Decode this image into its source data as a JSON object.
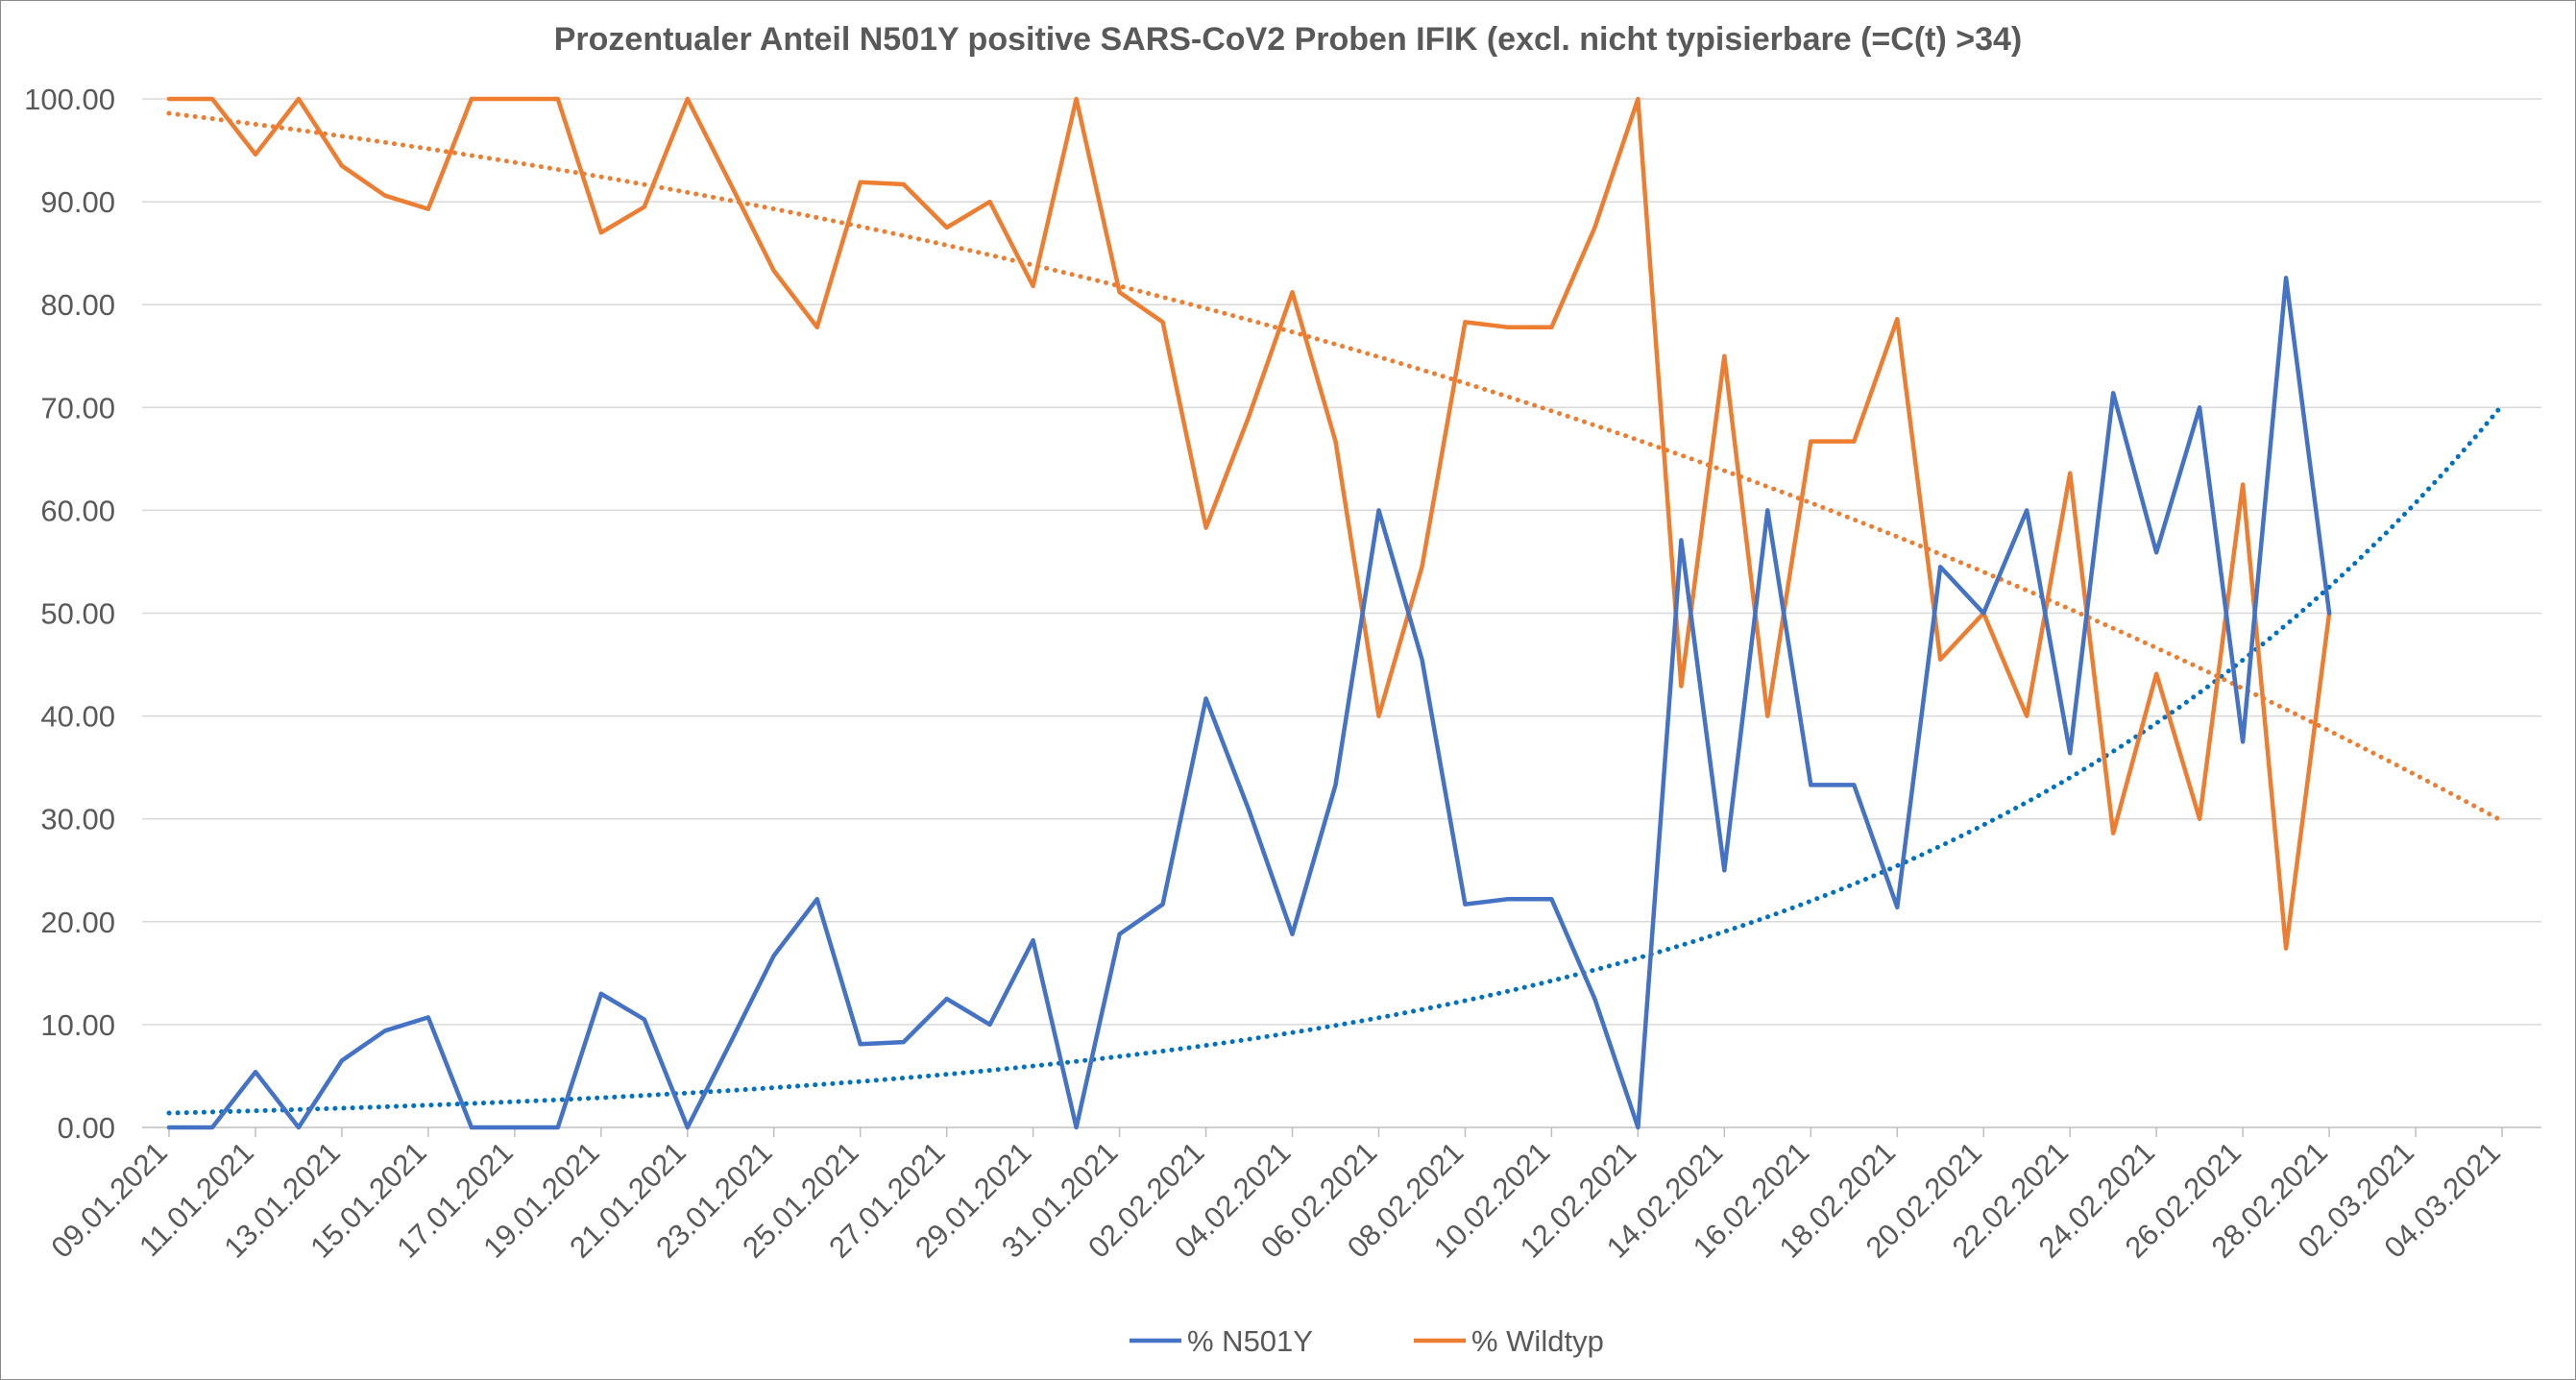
{
  "chart_data": {
    "type": "line",
    "title": "Prozentualer Anteil N501Y positive SARS-CoV2 Proben IFIK (excl. nicht typisierbare (=C(t) >34)",
    "xlabel": "",
    "ylabel": "",
    "ylim": [
      0,
      100
    ],
    "y_ticks": [
      "0.00",
      "10.00",
      "20.00",
      "30.00",
      "40.00",
      "50.00",
      "60.00",
      "70.00",
      "80.00",
      "90.00",
      "100.00"
    ],
    "x_range": [
      "09.01.2021",
      "04.03.2021"
    ],
    "x_tick_labels": [
      "09.01.2021",
      "11.01.2021",
      "13.01.2021",
      "15.01.2021",
      "17.01.2021",
      "19.01.2021",
      "21.01.2021",
      "23.01.2021",
      "25.01.2021",
      "27.01.2021",
      "29.01.2021",
      "31.01.2021",
      "02.02.2021",
      "04.02.2021",
      "06.02.2021",
      "08.02.2021",
      "10.02.2021",
      "12.02.2021",
      "14.02.2021",
      "16.02.2021",
      "18.02.2021",
      "20.02.2021",
      "22.02.2021",
      "24.02.2021",
      "26.02.2021",
      "28.02.2021",
      "02.03.2021",
      "04.03.2021"
    ],
    "grid": true,
    "legend_position": "bottom",
    "series": [
      {
        "name": "% N501Y",
        "color": "#4472c4",
        "points": [
          [
            "09.01.2021",
            0
          ],
          [
            "10.01.2021",
            0
          ],
          [
            "11.01.2021",
            5.4
          ],
          [
            "12.01.2021",
            0
          ],
          [
            "13.01.2021",
            6.5
          ],
          [
            "14.01.2021",
            9.4
          ],
          [
            "15.01.2021",
            10.7
          ],
          [
            "16.01.2021",
            0
          ],
          [
            "17.01.2021",
            0
          ],
          [
            "18.01.2021",
            0
          ],
          [
            "19.01.2021",
            13.0
          ],
          [
            "20.01.2021",
            10.5
          ],
          [
            "21.01.2021",
            0
          ],
          [
            "22.01.2021",
            8.3
          ],
          [
            "23.01.2021",
            16.7
          ],
          [
            "24.01.2021",
            22.2
          ],
          [
            "25.01.2021",
            8.1
          ],
          [
            "26.01.2021",
            8.3
          ],
          [
            "27.01.2021",
            12.5
          ],
          [
            "28.01.2021",
            10.0
          ],
          [
            "29.01.2021",
            18.2
          ],
          [
            "30.01.2021",
            0
          ],
          [
            "31.01.2021",
            18.8
          ],
          [
            "01.02.2021",
            21.7
          ],
          [
            "02.02.2021",
            41.7
          ],
          [
            "03.02.2021",
            30.8
          ],
          [
            "04.02.2021",
            18.8
          ],
          [
            "05.02.2021",
            33.3
          ],
          [
            "06.02.2021",
            60.0
          ],
          [
            "07.02.2021",
            45.5
          ],
          [
            "08.02.2021",
            21.7
          ],
          [
            "09.02.2021",
            22.2
          ],
          [
            "10.02.2021",
            22.2
          ],
          [
            "11.02.2021",
            12.5
          ],
          [
            "12.02.2021",
            0
          ],
          [
            "13.02.2021",
            57.1
          ],
          [
            "14.02.2021",
            25.0
          ],
          [
            "15.02.2021",
            60.0
          ],
          [
            "16.02.2021",
            33.3
          ],
          [
            "17.02.2021",
            33.3
          ],
          [
            "18.02.2021",
            21.4
          ],
          [
            "19.02.2021",
            54.5
          ],
          [
            "20.02.2021",
            50.0
          ],
          [
            "21.02.2021",
            60.0
          ],
          [
            "22.02.2021",
            36.4
          ],
          [
            "23.02.2021",
            71.4
          ],
          [
            "24.02.2021",
            55.9
          ],
          [
            "25.02.2021",
            70.0
          ],
          [
            "26.02.2021",
            37.5
          ],
          [
            "27.02.2021",
            82.6
          ],
          [
            "28.02.2021",
            50.0
          ]
        ]
      },
      {
        "name": "% Wildtyp",
        "color": "#ed7d31",
        "points": [
          [
            "09.01.2021",
            100
          ],
          [
            "10.01.2021",
            100
          ],
          [
            "11.01.2021",
            94.6
          ],
          [
            "12.01.2021",
            100
          ],
          [
            "13.01.2021",
            93.5
          ],
          [
            "14.01.2021",
            90.6
          ],
          [
            "15.01.2021",
            89.3
          ],
          [
            "16.01.2021",
            100
          ],
          [
            "17.01.2021",
            100
          ],
          [
            "18.01.2021",
            100
          ],
          [
            "19.01.2021",
            87.0
          ],
          [
            "20.01.2021",
            89.5
          ],
          [
            "21.01.2021",
            100
          ],
          [
            "22.01.2021",
            91.7
          ],
          [
            "23.01.2021",
            83.3
          ],
          [
            "24.01.2021",
            77.8
          ],
          [
            "25.01.2021",
            91.9
          ],
          [
            "26.01.2021",
            91.7
          ],
          [
            "27.01.2021",
            87.5
          ],
          [
            "28.01.2021",
            90.0
          ],
          [
            "29.01.2021",
            81.8
          ],
          [
            "30.01.2021",
            100
          ],
          [
            "31.01.2021",
            81.2
          ],
          [
            "01.02.2021",
            78.3
          ],
          [
            "02.02.2021",
            58.3
          ],
          [
            "03.02.2021",
            69.2
          ],
          [
            "04.02.2021",
            81.2
          ],
          [
            "05.02.2021",
            66.7
          ],
          [
            "06.02.2021",
            40.0
          ],
          [
            "07.02.2021",
            54.5
          ],
          [
            "08.02.2021",
            78.3
          ],
          [
            "09.02.2021",
            77.8
          ],
          [
            "10.02.2021",
            77.8
          ],
          [
            "11.02.2021",
            87.5
          ],
          [
            "12.02.2021",
            100
          ],
          [
            "13.02.2021",
            42.9
          ],
          [
            "14.02.2021",
            75.0
          ],
          [
            "15.02.2021",
            40.0
          ],
          [
            "16.02.2021",
            66.7
          ],
          [
            "17.02.2021",
            66.7
          ],
          [
            "18.02.2021",
            78.6
          ],
          [
            "19.02.2021",
            45.5
          ],
          [
            "20.02.2021",
            50.0
          ],
          [
            "21.02.2021",
            40.0
          ],
          [
            "22.02.2021",
            63.6
          ],
          [
            "23.02.2021",
            28.6
          ],
          [
            "24.02.2021",
            44.1
          ],
          [
            "25.02.2021",
            30.0
          ],
          [
            "26.02.2021",
            62.5
          ],
          [
            "27.02.2021",
            17.4
          ],
          [
            "28.02.2021",
            50.0
          ]
        ]
      }
    ],
    "trendlines": [
      {
        "type": "exponential",
        "series": "% N501Y",
        "color": "#0070c0",
        "style": "dotted",
        "start": [
          "09.01.2021",
          1.4
        ],
        "end": [
          "04.03.2021",
          70.2
        ]
      },
      {
        "type": "polynomial",
        "series": "% Wildtyp",
        "color": "#ed7d31",
        "style": "dotted",
        "points": [
          [
            "09.01.2021",
            98.6
          ],
          [
            "31.01.2021",
            81.8
          ],
          [
            "20.02.2021",
            54.0
          ],
          [
            "04.03.2021",
            29.8
          ]
        ]
      }
    ]
  }
}
